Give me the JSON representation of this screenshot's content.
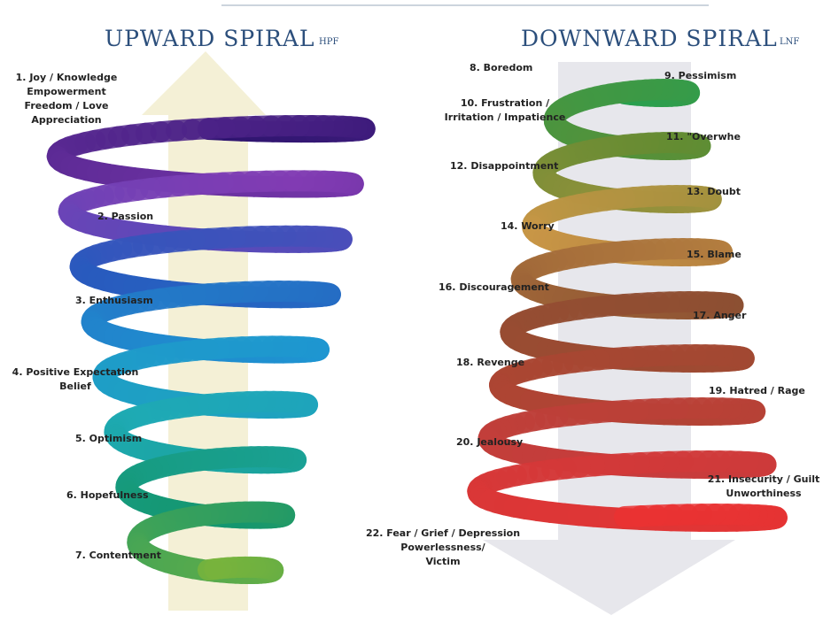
{
  "upward": {
    "title": "UPWARD SPIRAL",
    "subtitle": "HPF",
    "labels": [
      [
        "1. Joy / Knowledge",
        "Empowerment",
        "Freedom / Love",
        "Appreciation"
      ],
      [
        "2. Passion"
      ],
      [
        "3. Enthusiasm"
      ],
      [
        "4. Positive Expectation",
        "Belief"
      ],
      [
        "5. Optimism"
      ],
      [
        "6. Hopefulness"
      ],
      [
        "7. Contentment"
      ]
    ]
  },
  "downward": {
    "title": "DOWNWARD SPIRAL",
    "subtitle": "LNF",
    "labels": [
      [
        "8. Boredom"
      ],
      [
        "9. Pessimism"
      ],
      [
        "10. Frustration /",
        "Irritation / Impatience"
      ],
      [
        "11. \"Overwhe"
      ],
      [
        "12. Disappointment"
      ],
      [
        "13. Doubt"
      ],
      [
        "14. Worry"
      ],
      [
        "15. Blame"
      ],
      [
        "16. Discouragement"
      ],
      [
        "17. Anger"
      ],
      [
        "18. Revenge"
      ],
      [
        "19. Hatred / Rage"
      ],
      [
        "20. Jealousy"
      ],
      [
        "21. Insecurity / Guilt",
        "Unworthiness"
      ],
      [
        "22. Fear / Grief / Depression",
        "Powerlessness/",
        "Victim"
      ]
    ]
  }
}
